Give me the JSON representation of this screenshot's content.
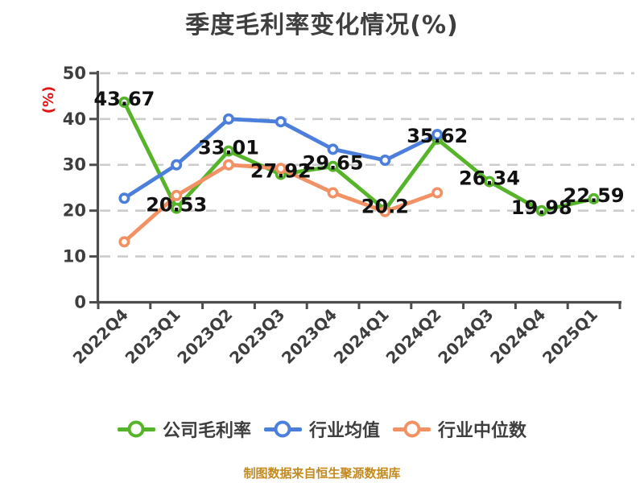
{
  "chart_data": {
    "type": "line",
    "title": "季度毛利率变化情况(%)",
    "y_axis_name": "(%)",
    "y_axis_name_color": "#e21414",
    "ylim": [
      0,
      50
    ],
    "y_ticks": [
      0,
      10,
      20,
      30,
      40,
      50
    ],
    "grid": "horizontal dashed",
    "legend_position": "bottom",
    "categories": [
      "2022Q4",
      "2023Q1",
      "2023Q2",
      "2023Q3",
      "2023Q4",
      "2024Q1",
      "2024Q2",
      "2024Q3",
      "2024Q4",
      "2025Q1"
    ],
    "series": [
      {
        "name": "公司毛利率",
        "color": "#55b42a",
        "show_labels": true,
        "values": [
          43.67,
          20.53,
          33.01,
          27.92,
          29.65,
          20.2,
          35.62,
          26.34,
          19.98,
          22.59
        ]
      },
      {
        "name": "行业均值",
        "color": "#4c7edb",
        "show_labels": false,
        "values": [
          22.7,
          30,
          40,
          39.4,
          33.4,
          31,
          36.6
        ]
      },
      {
        "name": "行业中位数",
        "color": "#f29164",
        "show_labels": false,
        "values": [
          13.2,
          23.3,
          30,
          29.2,
          23.9,
          19.8,
          23.9
        ]
      }
    ],
    "colors": {
      "grid": "#cccccc",
      "axis": "#4d4d4d",
      "tick_text": "#3e3e3e",
      "data_label": "#111111",
      "title": "#3f3f3f"
    }
  },
  "footer": {
    "text": "制图数据来自恒生聚源数据库",
    "color": "#c38a20"
  }
}
